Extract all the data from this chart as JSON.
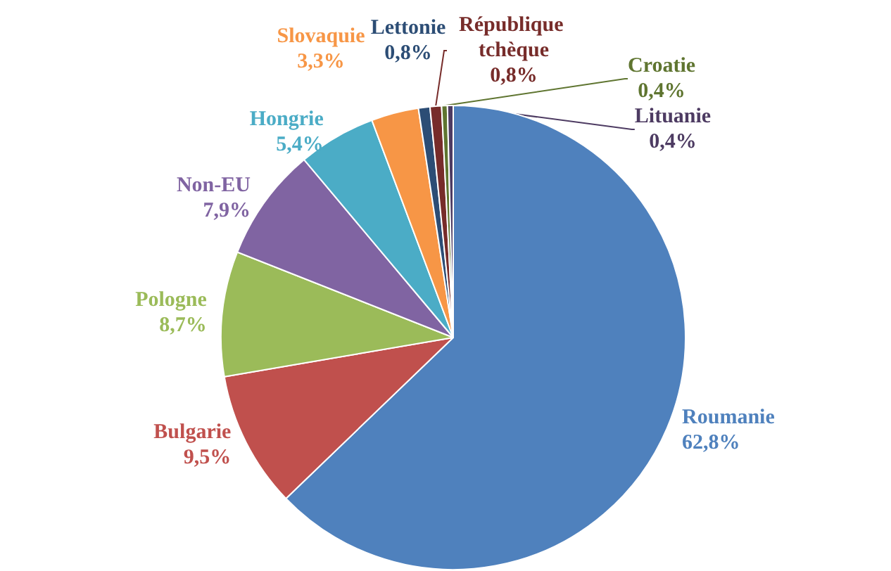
{
  "chart_data": {
    "type": "pie",
    "categories": [
      "Roumanie",
      "Bulgarie",
      "Pologne",
      "Non-EU",
      "Hongrie",
      "Slovaquie",
      "Lettonie",
      "République tchèque",
      "Croatie",
      "Lituanie"
    ],
    "values": [
      62.8,
      9.5,
      8.7,
      7.9,
      5.4,
      3.3,
      0.8,
      0.8,
      0.4,
      0.4
    ],
    "colors": [
      "#4f81bd",
      "#c0504d",
      "#9bbb59",
      "#8064a2",
      "#4bacc6",
      "#f79646",
      "#2c4d75",
      "#772c2a",
      "#5f7530",
      "#4d3b62"
    ],
    "value_labels": [
      "62,8%",
      "9,5%",
      "8,7%",
      "7,9%",
      "5,4%",
      "3,3%",
      "0,8%",
      "0,8%",
      "0,4%",
      "0,4%"
    ],
    "legend": false
  }
}
